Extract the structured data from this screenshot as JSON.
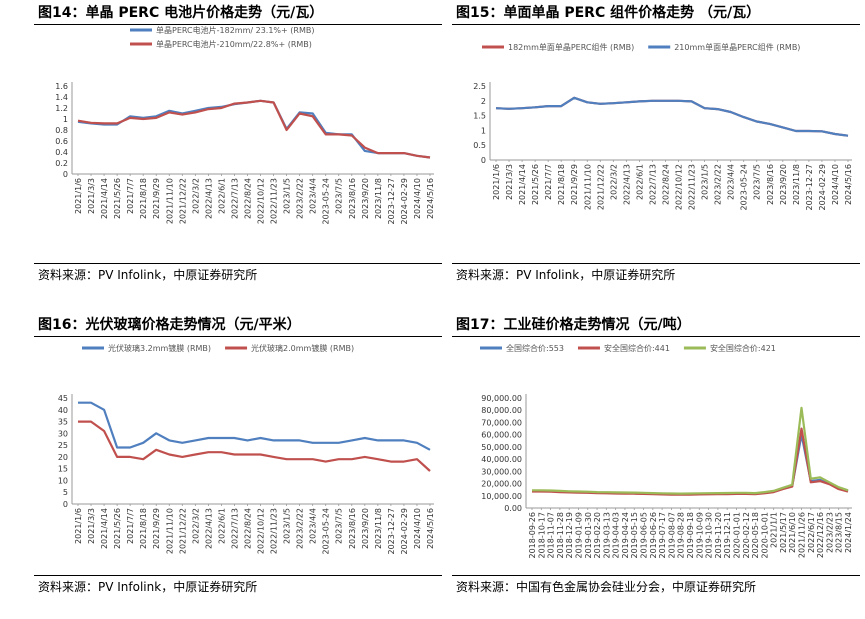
{
  "chart_data": [
    {
      "type": "line",
      "title": "图14：单晶 PERC 电池片价格走势（元/瓦）",
      "source": "资料来源：PV Infolink，中原证券研究所",
      "x": [
        "2021/1/6",
        "2021/3/3",
        "2021/4/14",
        "2021/5/26",
        "2021/7/7",
        "2021/8/18",
        "2021/9/29",
        "2021/11/10",
        "2021/12/22",
        "2022/3/2",
        "2022/4/13",
        "2022/6/1",
        "2022/7/13",
        "2022/8/24",
        "2022/10/12",
        "2022/11/23",
        "2023/1/5",
        "2023/2/22",
        "2023/4/4",
        "2023-05-24",
        "2023/7/5",
        "2023/8/16",
        "2023/9/20",
        "2023/11/8",
        "2023-12-27",
        "2024-02-29",
        "2024/4/10",
        "2024/5/16"
      ],
      "yticks": [
        0,
        0.2,
        0.4,
        0.6,
        0.8,
        1,
        1.2,
        1.4,
        1.6
      ],
      "ylim": [
        0,
        1.6
      ],
      "legend": "top",
      "grid": false,
      "series": [
        {
          "name": "单晶PERC电池片-182mm/ 23.1%+ (RMB)",
          "color": "#4f7fbe",
          "values": [
            0.95,
            0.92,
            0.9,
            0.9,
            1.05,
            1.02,
            1.05,
            1.15,
            1.1,
            1.15,
            1.2,
            1.22,
            1.27,
            1.3,
            1.33,
            1.3,
            0.82,
            1.12,
            1.1,
            0.75,
            0.72,
            0.72,
            0.42,
            0.38,
            0.38,
            0.38,
            0.33,
            0.3
          ]
        },
        {
          "name": "单晶PERC电池片-210mm/22.8%+ (RMB)",
          "color": "#c0504d",
          "values": [
            0.97,
            0.93,
            0.92,
            0.92,
            1.02,
            1.0,
            1.02,
            1.12,
            1.08,
            1.12,
            1.18,
            1.2,
            1.28,
            1.3,
            1.33,
            1.3,
            0.8,
            1.1,
            1.05,
            0.72,
            0.72,
            0.7,
            0.48,
            0.38,
            0.38,
            0.38,
            0.33,
            0.3
          ]
        }
      ]
    },
    {
      "type": "line",
      "title": "图15：单面单晶 PERC 组件价格走势 （元/瓦）",
      "source": "资料来源：PV Infolink，中原证券研究所",
      "x": [
        "2021/1/6",
        "2021/3/3",
        "2021/4/14",
        "2021/5/26",
        "2021/7/7",
        "2021/8/18",
        "2021/9/29",
        "2021/11/10",
        "2021/12/22",
        "2022/3/2",
        "2022/4/13",
        "2022/6/1",
        "2022/7/13",
        "2022/8/24",
        "2022/10/12",
        "2022/11/23",
        "2023/1/5",
        "2023/2/22",
        "2023/4/4",
        "2023-05-24",
        "2023/7/5",
        "2023/8/16",
        "2023/9/20",
        "2023/11/8",
        "2023-12-27",
        "2024-02-29",
        "2024/4/10",
        "2024/5/16"
      ],
      "yticks": [
        0,
        0.5,
        1,
        1.5,
        2,
        2.5
      ],
      "ylim": [
        0,
        2.5
      ],
      "legend": "top",
      "grid": false,
      "series": [
        {
          "name": "182mm单面单晶PERC组件 (RMB)",
          "color": "#c0504d",
          "values": [
            1.75,
            1.73,
            1.75,
            1.78,
            1.82,
            1.82,
            2.1,
            1.95,
            1.9,
            1.92,
            1.95,
            1.98,
            2.0,
            2.0,
            2.0,
            1.98,
            1.75,
            1.72,
            1.62,
            1.45,
            1.3,
            1.22,
            1.1,
            0.98,
            0.98,
            0.97,
            0.88,
            0.82
          ]
        },
        {
          "name": "210mm单面单晶PERC组件 (RMB)",
          "color": "#4f7fbe",
          "values": [
            1.75,
            1.73,
            1.75,
            1.78,
            1.82,
            1.82,
            2.1,
            1.95,
            1.9,
            1.92,
            1.95,
            1.98,
            2.0,
            2.0,
            2.0,
            1.98,
            1.75,
            1.72,
            1.62,
            1.45,
            1.3,
            1.22,
            1.1,
            0.98,
            0.98,
            0.97,
            0.88,
            0.82
          ]
        }
      ]
    },
    {
      "type": "line",
      "title": "图16：光伏玻璃价格走势情况（元/平米）",
      "source": "资料来源：PV Infolink，中原证券研究所",
      "x": [
        "2021/1/6",
        "2021/3/3",
        "2021/4/14",
        "2021/5/26",
        "2021/7/7",
        "2021/8/18",
        "2021/9/29",
        "2021/11/10",
        "2021/12/22",
        "2022/3/2",
        "2022/4/13",
        "2022/6/1",
        "2022/7/13",
        "2022/8/24",
        "2022/10/12",
        "2022/11/23",
        "2023/1/5",
        "2023/2/22",
        "2023/4/4",
        "2023-05-24",
        "2023/7/5",
        "2023/8/16",
        "2023/9/20",
        "2023/11/8",
        "2023-12-27",
        "2024-02-29",
        "2024/4/10",
        "2024/5/16"
      ],
      "yticks": [
        0,
        5,
        10,
        15,
        20,
        25,
        30,
        35,
        40,
        45
      ],
      "ylim": [
        0,
        45
      ],
      "legend": "top",
      "grid": false,
      "series": [
        {
          "name": "光伏玻璃3.2mm镀膜 (RMB)",
          "color": "#4f7fbe",
          "values": [
            43,
            43,
            40,
            24,
            24,
            26,
            30,
            27,
            26,
            27,
            28,
            28,
            28,
            27,
            28,
            27,
            27,
            27,
            26,
            26,
            26,
            27,
            28,
            27,
            27,
            27,
            26,
            23
          ]
        },
        {
          "name": "光伏玻璃2.0mm镀膜 (RMB)",
          "color": "#c0504d",
          "values": [
            35,
            35,
            31,
            20,
            20,
            19,
            23,
            21,
            20,
            21,
            22,
            22,
            21,
            21,
            21,
            20,
            19,
            19,
            19,
            18,
            19,
            19,
            20,
            19,
            18,
            18,
            19,
            14
          ]
        }
      ]
    },
    {
      "type": "line",
      "title": "图17：工业硅价格走势情况（元/吨）",
      "source": "资料来源：中国有色金属协会硅业分会，中原证券研究所",
      "x": [
        "2018-09-26",
        "2018-10-17",
        "2018-11-07",
        "2018-11-28",
        "2018-12-19",
        "2019-01-09",
        "2019-01-30",
        "2019-02-20",
        "2019-03-13",
        "2019-04-03",
        "2019-04-24",
        "2019-05-15",
        "2019-06-05",
        "2019-06-26",
        "2019-07-17",
        "2019-08-07",
        "2019-08-28",
        "2019-09-18",
        "2019-10-09",
        "2019-10-30",
        "2019-11-20",
        "2019-12-11",
        "2020-01-01",
        "2020-02-12",
        "2020-05-18",
        "2020-10-01",
        "2021/1/1",
        "2021/5/17",
        "2021/6/10",
        "2021/11/26",
        "2022/6/17",
        "2022/12/16",
        "2023/2/23",
        "2023/8/15",
        "2024/1/24"
      ],
      "yticks": [
        0,
        10000,
        20000,
        30000,
        40000,
        50000,
        60000,
        70000,
        80000,
        90000
      ],
      "ytick_labels": [
        "0.00",
        "10,000.00",
        "20,000.00",
        "30,000.00",
        "40,000.00",
        "50,000.00",
        "60,000.00",
        "70,000.00",
        "80,000.00",
        "90,000.00"
      ],
      "ylim": [
        0,
        90000
      ],
      "legend": "top",
      "grid": false,
      "series": [
        {
          "name": "全国综合价:553",
          "color": "#4f7fbe",
          "values": [
            14000,
            14000,
            13800,
            13500,
            13200,
            13000,
            12800,
            12600,
            12500,
            12400,
            12300,
            12200,
            12000,
            11800,
            11600,
            11500,
            11400,
            11500,
            11600,
            11700,
            11800,
            11900,
            12000,
            12000,
            11800,
            12500,
            13500,
            16000,
            18000,
            60000,
            22000,
            23000,
            20000,
            16000,
            14000
          ]
        },
        {
          "name": "安全国综合价:441",
          "color": "#c0504d",
          "values": [
            13500,
            13500,
            13300,
            13000,
            12800,
            12600,
            12400,
            12200,
            12000,
            11900,
            11800,
            11700,
            11500,
            11300,
            11100,
            11000,
            10900,
            11000,
            11100,
            11200,
            11300,
            11400,
            11500,
            11500,
            11300,
            12000,
            13000,
            15500,
            17500,
            65000,
            21000,
            22000,
            19500,
            15500,
            13500
          ]
        },
        {
          "name": "安全国综合价:421",
          "color": "#9bbb59",
          "values": [
            14500,
            14500,
            14300,
            14000,
            13700,
            13500,
            13300,
            13000,
            12900,
            12800,
            12700,
            12600,
            12400,
            12200,
            12000,
            11900,
            11800,
            11900,
            12000,
            12100,
            12200,
            12300,
            12400,
            12400,
            12200,
            13000,
            14000,
            16500,
            19000,
            82000,
            24000,
            25000,
            21000,
            17000,
            14500
          ]
        }
      ]
    }
  ]
}
